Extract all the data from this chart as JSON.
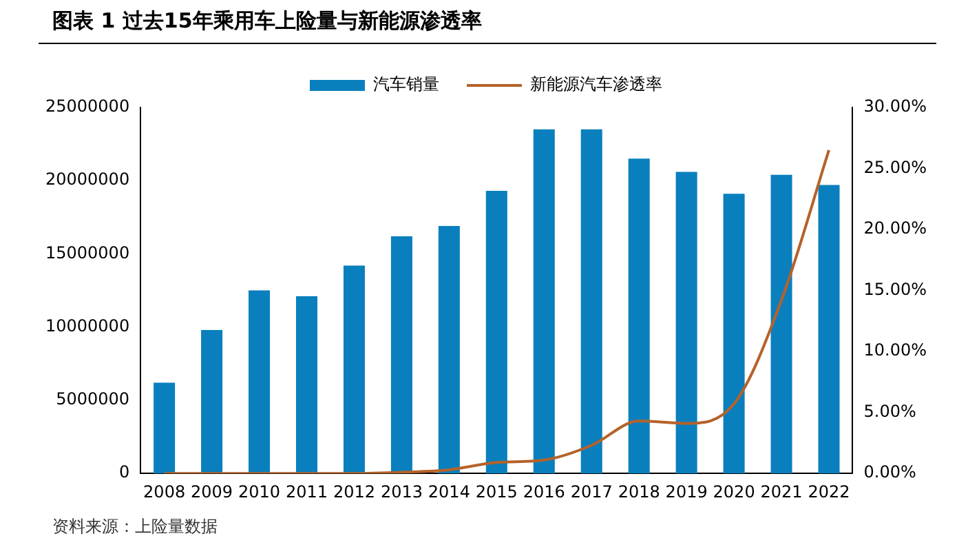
{
  "chart_data": {
    "type": "bar",
    "title": "图表 1  过去15年乘用车上险量与新能源渗透率",
    "categories": [
      "2008",
      "2009",
      "2010",
      "2011",
      "2012",
      "2013",
      "2014",
      "2015",
      "2016",
      "2017",
      "2018",
      "2019",
      "2020",
      "2021",
      "2022"
    ],
    "series": [
      {
        "name": "汽车销量",
        "color": "#0a7fbd",
        "values": [
          6200000,
          9800000,
          12500000,
          12100000,
          14200000,
          16200000,
          16900000,
          19300000,
          23500000,
          23500000,
          21500000,
          20600000,
          19100000,
          20400000,
          19700000
        ]
      },
      {
        "name": "新能源汽车渗透率",
        "type": "line",
        "axis": "y2",
        "color": "#b5622a",
        "values": [
          0,
          0,
          0,
          0,
          0,
          0.1,
          0.3,
          0.9,
          1.1,
          2.3,
          4.3,
          4.1,
          5.7,
          14.2,
          26.5
        ]
      }
    ],
    "ylim": [
      0,
      25000000
    ],
    "yticks": [
      0,
      5000000,
      10000000,
      15000000,
      20000000,
      25000000
    ],
    "y2lim": [
      0,
      30
    ],
    "y2ticks": [
      {
        "value": 0,
        "label": "0.00%"
      },
      {
        "value": 5,
        "label": "5.00%"
      },
      {
        "value": 10,
        "label": "10.00%"
      },
      {
        "value": 15,
        "label": "15.00%"
      },
      {
        "value": 20,
        "label": "20.00%"
      },
      {
        "value": 25,
        "label": "25.00%"
      },
      {
        "value": 30,
        "label": "30.00%"
      }
    ],
    "grid": false,
    "legend": "top",
    "marker": "none",
    "annotations": [
      "资料来源：上险量数据"
    ]
  }
}
